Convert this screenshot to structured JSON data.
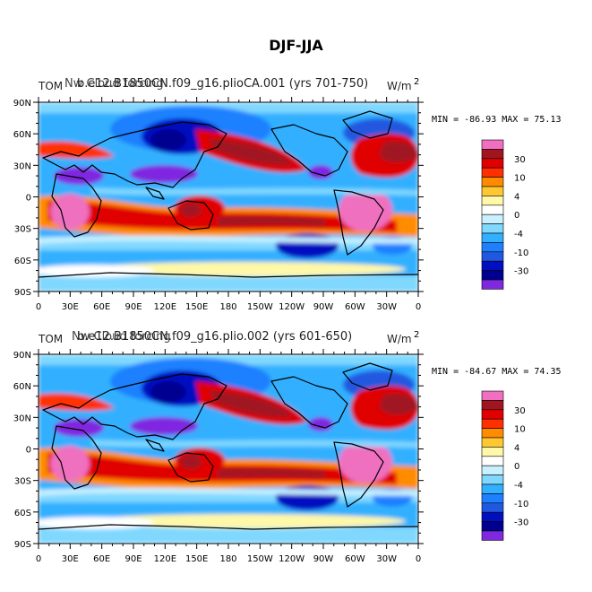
{
  "title": "DJF-JJA",
  "colorbar": {
    "colors": [
      "#f06fc0",
      "#a01520",
      "#e00000",
      "#ff3000",
      "#ff8c00",
      "#ffc830",
      "#fff8a8",
      "#ffffff",
      "#c8f0ff",
      "#80d8ff",
      "#30b0ff",
      "#1e80ff",
      "#2058e0",
      "#0010c0",
      "#000090",
      "#8028e0"
    ],
    "tick_labels": [
      "30",
      "10",
      "4",
      "0",
      "-4",
      "-10",
      "-30"
    ]
  },
  "x_ticks": [
    "0",
    "30E",
    "60E",
    "90E",
    "120E",
    "150E",
    "180",
    "150W",
    "120W",
    "90W",
    "60W",
    "30W",
    "0"
  ],
  "y_ticks": [
    "90N",
    "60N",
    "30N",
    "0",
    "30S",
    "60S",
    "90S"
  ],
  "panels": [
    {
      "title_left": "TOM",
      "overlap_a": "b.e12.B1850CN.f09_g16.plioCA.001 (yrs 701-750)",
      "overlap_b": "Nw Cloud forcing",
      "units": "W/m",
      "units_sup": "2",
      "stats": "MIN = -86.93 MAX =  75.13"
    },
    {
      "title_left": "TOM",
      "overlap_a": "b.e12.B1850CN.f09_g16.plio.002 (yrs 601-650)",
      "overlap_b": "Nw Cloud forcing",
      "units": "W/m",
      "units_sup": "2",
      "stats": "MIN = -84.67 MAX =  74.35"
    }
  ]
}
